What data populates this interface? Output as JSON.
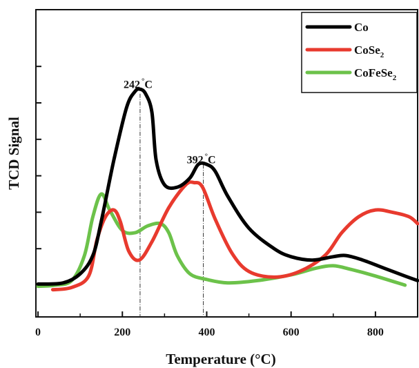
{
  "chart_data": {
    "type": "line",
    "xlabel": "Temperature (°C)",
    "ylabel": "TCD Signal",
    "xlim": [
      -5,
      900
    ],
    "ylim": [
      0,
      100
    ],
    "x_ticks": [
      0,
      200,
      400,
      600,
      800
    ],
    "y_ticks": [
      0,
      16,
      32,
      48,
      64,
      80,
      96
    ],
    "y_tick_labels_shown": false,
    "grid": false,
    "legend_position": "top-right",
    "legend": [
      {
        "label": "Co",
        "sub": ""
      },
      {
        "label": "CoSe",
        "sub": "2"
      },
      {
        "label": "CoFeSe",
        "sub": "2"
      }
    ],
    "annotations": [
      {
        "text": "242",
        "unit": "°C",
        "x": 242,
        "y": 86.5
      },
      {
        "text": "392",
        "unit": "°C",
        "x": 392,
        "y": 53.5
      }
    ],
    "reference_lines": [
      {
        "x": 242,
        "y_top": 84.0
      },
      {
        "x": 392,
        "y_top": 53.0
      }
    ],
    "series": [
      {
        "name": "Co",
        "color": "#000000",
        "points": [
          [
            0,
            0.5
          ],
          [
            60,
            1
          ],
          [
            100,
            5
          ],
          [
            130,
            13
          ],
          [
            150,
            28
          ],
          [
            180,
            55
          ],
          [
            210,
            78
          ],
          [
            230,
            85
          ],
          [
            242,
            86
          ],
          [
            255,
            84
          ],
          [
            270,
            76
          ],
          [
            280,
            55
          ],
          [
            300,
            44
          ],
          [
            330,
            43
          ],
          [
            360,
            47
          ],
          [
            380,
            53
          ],
          [
            400,
            53
          ],
          [
            420,
            50
          ],
          [
            450,
            39
          ],
          [
            500,
            25
          ],
          [
            560,
            16
          ],
          [
            600,
            12.5
          ],
          [
            650,
            11
          ],
          [
            700,
            12.5
          ],
          [
            730,
            13
          ],
          [
            770,
            11
          ],
          [
            820,
            7.5
          ],
          [
            870,
            4
          ],
          [
            900,
            2
          ]
        ]
      },
      {
        "name": "CoSe2",
        "color": "#e83a2e",
        "points": [
          [
            35,
            -2
          ],
          [
            80,
            -1
          ],
          [
            120,
            4
          ],
          [
            140,
            20
          ],
          [
            160,
            30
          ],
          [
            180,
            33
          ],
          [
            195,
            28
          ],
          [
            215,
            15
          ],
          [
            240,
            11
          ],
          [
            270,
            19
          ],
          [
            310,
            34
          ],
          [
            350,
            44
          ],
          [
            370,
            45
          ],
          [
            390,
            43
          ],
          [
            420,
            29
          ],
          [
            460,
            14
          ],
          [
            500,
            6
          ],
          [
            560,
            3.5
          ],
          [
            620,
            6
          ],
          [
            680,
            13
          ],
          [
            720,
            23
          ],
          [
            760,
            30
          ],
          [
            800,
            33
          ],
          [
            840,
            32
          ],
          [
            880,
            30
          ],
          [
            900,
            27
          ]
        ]
      },
      {
        "name": "CoFeSe2",
        "color": "#6cc24a",
        "points": [
          [
            0,
            -0.5
          ],
          [
            40,
            0
          ],
          [
            80,
            2
          ],
          [
            110,
            13
          ],
          [
            130,
            30
          ],
          [
            150,
            40
          ],
          [
            170,
            33
          ],
          [
            200,
            24
          ],
          [
            230,
            23
          ],
          [
            260,
            26
          ],
          [
            290,
            27
          ],
          [
            310,
            23
          ],
          [
            330,
            13
          ],
          [
            360,
            5
          ],
          [
            400,
            2.5
          ],
          [
            450,
            1
          ],
          [
            520,
            2
          ],
          [
            600,
            4.5
          ],
          [
            660,
            7.5
          ],
          [
            700,
            8.5
          ],
          [
            740,
            7
          ],
          [
            800,
            4
          ],
          [
            870,
            0
          ]
        ]
      }
    ]
  }
}
